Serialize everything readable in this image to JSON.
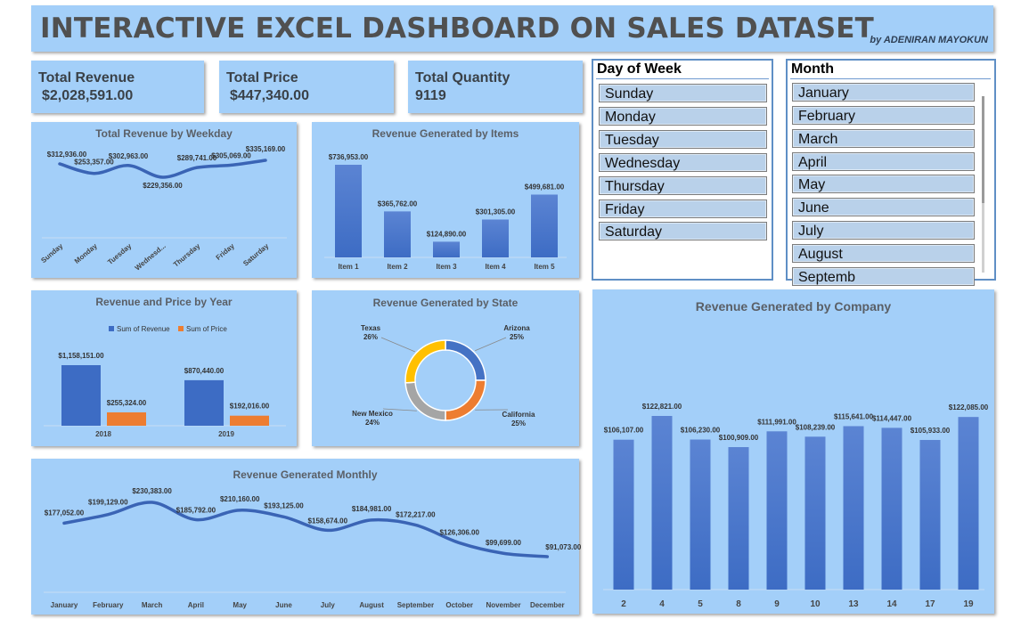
{
  "header": {
    "title": "INTERACTIVE EXCEL DASHBOARD ON SALES DATASET",
    "byline": "by ADENIRAN MAYOKUN"
  },
  "kpis": [
    {
      "label": "Total Revenue",
      "value": "$2,028,591.00"
    },
    {
      "label": "Total Price",
      "value": "$447,340.00"
    },
    {
      "label": "Total Quantity",
      "value": "9119"
    }
  ],
  "slicers": {
    "day": {
      "title": "Day of Week",
      "items": [
        "Sunday",
        "Monday",
        "Tuesday",
        "Wednesday",
        "Thursday",
        "Friday",
        "Saturday"
      ]
    },
    "month": {
      "title": "Month",
      "items": [
        "January",
        "February",
        "March",
        "April",
        "May",
        "June",
        "July",
        "August",
        "Septemb"
      ]
    }
  },
  "colors": {
    "panel": "#a3cff9",
    "bar": "#3d6cc4",
    "bar_light": "#5b84d3",
    "line": "#3a64b5",
    "orange": "#ed7d31",
    "gray": "#a5a5a5",
    "gold": "#ffc000"
  },
  "chart_data": [
    {
      "id": "weekday",
      "type": "line",
      "title": "Total Revenue by Weekday",
      "categories": [
        "Sunday",
        "Monday",
        "Tuesday",
        "Wednesd...",
        "Thursday",
        "Friday",
        "Saturday"
      ],
      "values": [
        312936,
        253357,
        302963,
        229356,
        289741,
        305069,
        335169
      ],
      "labels": [
        "$312,936.00",
        "$253,357.00",
        "$302,963.00",
        "$229,356.00",
        "$289,741.00",
        "$305,069.00",
        "$335,169.00"
      ],
      "ylim": [
        0,
        600000
      ]
    },
    {
      "id": "items",
      "type": "bar",
      "title": "Revenue Generated by Items",
      "categories": [
        "Item 1",
        "Item 2",
        "Item 3",
        "Item 4",
        "Item 5"
      ],
      "values": [
        736953,
        365762,
        124890,
        301305,
        499681
      ],
      "labels": [
        "$736,953.00",
        "$365,762.00",
        "$124,890.00",
        "$301,305.00",
        "$499,681.00"
      ]
    },
    {
      "id": "year",
      "type": "bar",
      "title": "Revenue and Price by Year",
      "categories": [
        "2018",
        "2019"
      ],
      "series": [
        {
          "name": "Sum of Revenue",
          "values": [
            1158151,
            870440
          ],
          "labels": [
            "$1,158,151.00",
            "$870,440.00"
          ]
        },
        {
          "name": "Sum of Price",
          "values": [
            255324,
            192016
          ],
          "labels": [
            "$255,324.00",
            "$192,016.00"
          ]
        }
      ],
      "legend": "top"
    },
    {
      "id": "state",
      "type": "pie",
      "title": "Revenue Generated by State",
      "categories": [
        "Arizona",
        "California",
        "New Mexico",
        "Texas"
      ],
      "values": [
        25,
        25,
        24,
        26
      ],
      "labels": [
        "25%",
        "25%",
        "24%",
        "26%"
      ]
    },
    {
      "id": "monthly",
      "type": "line",
      "title": "Revenue Generated Monthly",
      "categories": [
        "January",
        "February",
        "March",
        "April",
        "May",
        "June",
        "July",
        "August",
        "September",
        "October",
        "November",
        "December"
      ],
      "values": [
        177052,
        199129,
        230383,
        185792,
        210160,
        193125,
        158674,
        184981,
        172217,
        126306,
        99699,
        91073
      ],
      "labels": [
        "$177,052.00",
        "$199,129.00",
        "$230,383.00",
        "$185,792.00",
        "$210,160.00",
        "$193,125.00",
        "$158,674.00",
        "$184,981.00",
        "$172,217.00",
        "$126,306.00",
        "$99,699.00",
        "$91,073.00"
      ],
      "ylim": [
        0,
        320000
      ]
    },
    {
      "id": "company",
      "type": "bar",
      "title": "Revenue Generated by Company",
      "categories": [
        "2",
        "4",
        "5",
        "8",
        "9",
        "10",
        "13",
        "14",
        "17",
        "19"
      ],
      "values": [
        106107,
        122821,
        106230,
        100909,
        111991,
        108239,
        115641,
        114447,
        105933,
        122085
      ],
      "labels": [
        "$106,107.00",
        "$122,821.00",
        "$106,230.00",
        "$100,909.00",
        "$111,991.00",
        "$108,239.00",
        "$115,641.00",
        "$114,447.00",
        "$105,933.00",
        "$122,085.00"
      ],
      "ylim": [
        0,
        140000
      ]
    }
  ]
}
